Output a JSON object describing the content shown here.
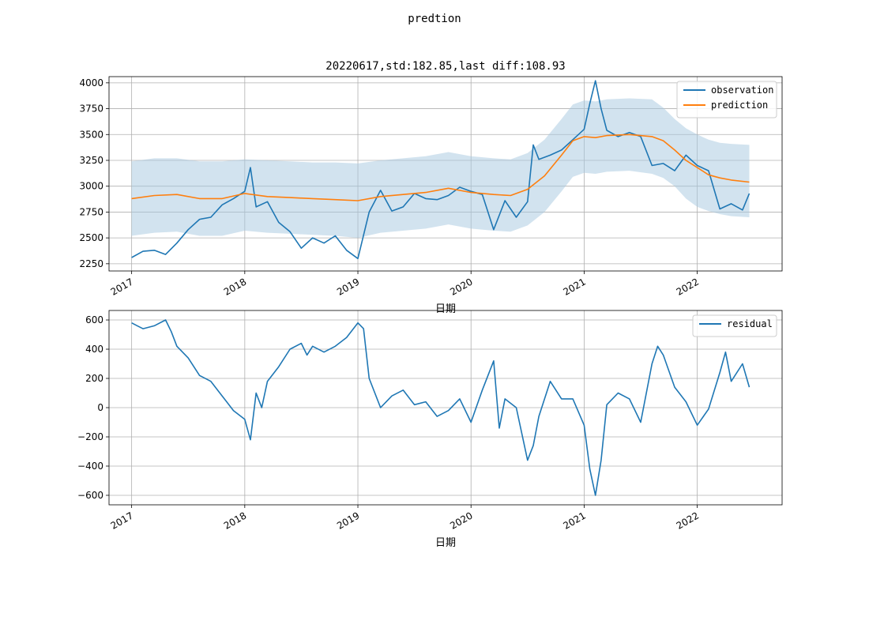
{
  "figure": {
    "suptitle": "predtion"
  },
  "colors": {
    "observation": "#1f77b4",
    "prediction": "#ff7f0e",
    "band": "#a6c8e0",
    "residual": "#1f77b4"
  },
  "chart_data": [
    {
      "type": "line",
      "title": "20220617,std:182.85,last diff:108.93",
      "xlabel": "日期",
      "ylabel": "",
      "x_tick_labels": [
        "2017",
        "2018",
        "2019",
        "2020",
        "2021",
        "2022"
      ],
      "x_ticks": [
        2017,
        2018,
        2019,
        2020,
        2021,
        2022
      ],
      "xlim": [
        2016.8,
        2022.75
      ],
      "ylim": [
        2180,
        4060
      ],
      "y_ticks": [
        2250,
        2500,
        2750,
        3000,
        3250,
        3500,
        3750,
        4000
      ],
      "y_tick_labels": [
        "2250",
        "2500",
        "2750",
        "3000",
        "3250",
        "3500",
        "3750",
        "4000"
      ],
      "grid": true,
      "legend": "top-right",
      "series": [
        {
          "name": "observation",
          "x": [
            2017.0,
            2017.1,
            2017.2,
            2017.3,
            2017.4,
            2017.5,
            2017.6,
            2017.7,
            2017.8,
            2017.9,
            2018.0,
            2018.05,
            2018.1,
            2018.2,
            2018.3,
            2018.4,
            2018.5,
            2018.6,
            2018.7,
            2018.8,
            2018.9,
            2019.0,
            2019.1,
            2019.2,
            2019.3,
            2019.4,
            2019.5,
            2019.6,
            2019.7,
            2019.8,
            2019.9,
            2020.0,
            2020.1,
            2020.2,
            2020.3,
            2020.4,
            2020.5,
            2020.55,
            2020.6,
            2020.7,
            2020.8,
            2020.9,
            2021.0,
            2021.05,
            2021.1,
            2021.15,
            2021.2,
            2021.3,
            2021.4,
            2021.5,
            2021.6,
            2021.7,
            2021.8,
            2021.9,
            2022.0,
            2022.1,
            2022.2,
            2022.3,
            2022.4,
            2022.46
          ],
          "values": [
            2310,
            2370,
            2380,
            2340,
            2450,
            2580,
            2680,
            2700,
            2820,
            2880,
            2950,
            3180,
            2800,
            2850,
            2650,
            2560,
            2400,
            2500,
            2450,
            2520,
            2380,
            2300,
            2750,
            2960,
            2760,
            2800,
            2930,
            2880,
            2870,
            2910,
            2990,
            2950,
            2920,
            2580,
            2860,
            2700,
            2850,
            3400,
            3260,
            3300,
            3350,
            3450,
            3550,
            3800,
            4020,
            3750,
            3540,
            3480,
            3520,
            3480,
            3200,
            3220,
            3150,
            3300,
            3200,
            3150,
            2780,
            2830,
            2770,
            2930
          ]
        },
        {
          "name": "prediction",
          "x": [
            2017.0,
            2017.2,
            2017.4,
            2017.6,
            2017.8,
            2018.0,
            2018.2,
            2018.4,
            2018.6,
            2018.8,
            2019.0,
            2019.2,
            2019.4,
            2019.6,
            2019.8,
            2020.0,
            2020.2,
            2020.35,
            2020.5,
            2020.65,
            2020.8,
            2020.9,
            2021.0,
            2021.1,
            2021.2,
            2021.4,
            2021.6,
            2021.7,
            2021.8,
            2021.9,
            2022.0,
            2022.1,
            2022.2,
            2022.3,
            2022.46
          ],
          "values": [
            2880,
            2910,
            2920,
            2880,
            2880,
            2930,
            2900,
            2890,
            2880,
            2870,
            2860,
            2900,
            2920,
            2940,
            2980,
            2940,
            2920,
            2910,
            2970,
            3100,
            3300,
            3440,
            3480,
            3470,
            3490,
            3500,
            3480,
            3440,
            3350,
            3250,
            3180,
            3110,
            3080,
            3060,
            3040
          ]
        }
      ],
      "band": {
        "x": [
          2017.0,
          2017.2,
          2017.4,
          2017.6,
          2017.8,
          2018.0,
          2018.2,
          2018.4,
          2018.6,
          2018.8,
          2019.0,
          2019.2,
          2019.4,
          2019.6,
          2019.8,
          2020.0,
          2020.2,
          2020.35,
          2020.5,
          2020.65,
          2020.8,
          2020.9,
          2021.0,
          2021.1,
          2021.2,
          2021.4,
          2021.6,
          2021.7,
          2021.8,
          2021.9,
          2022.0,
          2022.1,
          2022.2,
          2022.3,
          2022.46
        ],
        "upper": [
          3240,
          3270,
          3270,
          3240,
          3240,
          3260,
          3250,
          3240,
          3230,
          3230,
          3220,
          3250,
          3270,
          3290,
          3330,
          3290,
          3270,
          3260,
          3320,
          3450,
          3650,
          3790,
          3830,
          3820,
          3840,
          3850,
          3840,
          3760,
          3650,
          3560,
          3500,
          3450,
          3420,
          3410,
          3400
        ],
        "lower": [
          2520,
          2550,
          2560,
          2520,
          2520,
          2570,
          2550,
          2540,
          2530,
          2520,
          2500,
          2550,
          2570,
          2590,
          2630,
          2590,
          2570,
          2560,
          2620,
          2750,
          2950,
          3090,
          3130,
          3120,
          3140,
          3150,
          3120,
          3080,
          3000,
          2880,
          2800,
          2760,
          2730,
          2710,
          2700
        ]
      }
    },
    {
      "type": "line",
      "title": "",
      "xlabel": "日期",
      "ylabel": "",
      "x_tick_labels": [
        "2017",
        "2018",
        "2019",
        "2020",
        "2021",
        "2022"
      ],
      "x_ticks": [
        2017,
        2018,
        2019,
        2020,
        2021,
        2022
      ],
      "xlim": [
        2016.8,
        2022.75
      ],
      "ylim": [
        -665,
        665
      ],
      "y_ticks": [
        -600,
        -400,
        -200,
        0,
        200,
        400,
        600
      ],
      "y_tick_labels": [
        "−600",
        "−400",
        "−200",
        "0",
        "200",
        "400",
        "600"
      ],
      "grid": true,
      "legend": "top-right",
      "series": [
        {
          "name": "residual",
          "x": [
            2017.0,
            2017.05,
            2017.1,
            2017.2,
            2017.3,
            2017.35,
            2017.4,
            2017.5,
            2017.6,
            2017.7,
            2017.8,
            2017.9,
            2018.0,
            2018.05,
            2018.1,
            2018.15,
            2018.2,
            2018.3,
            2018.4,
            2018.5,
            2018.55,
            2018.6,
            2018.7,
            2018.8,
            2018.9,
            2019.0,
            2019.05,
            2019.1,
            2019.2,
            2019.3,
            2019.4,
            2019.5,
            2019.6,
            2019.7,
            2019.8,
            2019.9,
            2020.0,
            2020.1,
            2020.2,
            2020.25,
            2020.3,
            2020.4,
            2020.5,
            2020.55,
            2020.6,
            2020.7,
            2020.8,
            2020.9,
            2021.0,
            2021.05,
            2021.1,
            2021.15,
            2021.2,
            2021.3,
            2021.4,
            2021.5,
            2021.6,
            2021.65,
            2021.7,
            2021.8,
            2021.9,
            2022.0,
            2022.1,
            2022.2,
            2022.25,
            2022.3,
            2022.4,
            2022.46
          ],
          "values": [
            580,
            560,
            540,
            560,
            600,
            520,
            420,
            340,
            220,
            180,
            80,
            -20,
            -80,
            -220,
            100,
            0,
            180,
            280,
            400,
            440,
            360,
            420,
            380,
            420,
            480,
            580,
            540,
            200,
            0,
            80,
            120,
            20,
            40,
            -60,
            -20,
            60,
            -100,
            120,
            320,
            -140,
            60,
            0,
            -360,
            -260,
            -60,
            180,
            60,
            60,
            -120,
            -420,
            -600,
            -360,
            20,
            100,
            60,
            -100,
            300,
            420,
            360,
            140,
            40,
            -120,
            -10,
            240,
            380,
            180,
            300,
            140
          ]
        }
      ]
    }
  ]
}
